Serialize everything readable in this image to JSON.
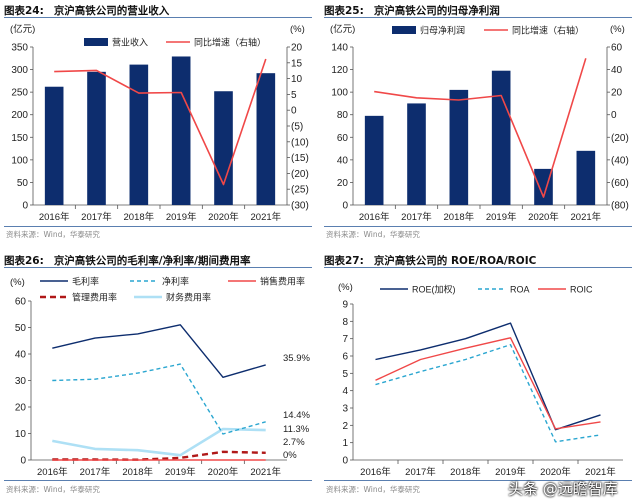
{
  "panels": [
    {
      "number": "图表24:",
      "title": "京沪高铁公司的营业收入",
      "source": "资料来源：Wind，华泰研究"
    },
    {
      "number": "图表25:",
      "title": "京沪高铁公司的归母净利润",
      "source": "资料来源：Wind，华泰研究"
    },
    {
      "number": "图表26:",
      "title": "京沪高铁公司的毛利率/净利率/期间费用率",
      "source": "资料来源：Wind，华泰研究"
    },
    {
      "number": "图表27:",
      "title": "京沪高铁公司的 ROE/ROA/ROIC",
      "source": "资料来源：Wind，华泰研究"
    }
  ],
  "watermark": "头条 @远瞻智库",
  "colors": {
    "navy": "#0d2d6e",
    "red": "#f04848",
    "teal": "#2aa6d0",
    "darkred": "#b01818",
    "lightblue": "#aee0f5",
    "rule": "#5a7fb0"
  },
  "chart_data": [
    {
      "type": "bar+line",
      "title": "京沪高铁公司的营业收入",
      "categories": [
        "2016年",
        "2017年",
        "2018年",
        "2019年",
        "2020年",
        "2021年"
      ],
      "ylabel": "(亿元)",
      "y2label": "(%)",
      "ylim": [
        0,
        350
      ],
      "y2lim": [
        -30,
        20
      ],
      "y_tick_labels": [
        "0",
        "50",
        "100",
        "150",
        "200",
        "250",
        "300",
        "350"
      ],
      "y2_tick_labels": [
        "(30)",
        "(25)",
        "(20)",
        "(15)",
        "(10)",
        "(5)",
        "0",
        "5",
        "10",
        "15",
        "20"
      ],
      "series": [
        {
          "name": "营业收入",
          "kind": "bar",
          "axis": "left",
          "color": "#0d2d6e",
          "values": [
            262,
            295,
            311,
            329,
            252,
            292
          ]
        },
        {
          "name": "同比增速（右轴）",
          "kind": "line",
          "axis": "right",
          "color": "#f04848",
          "values": [
            12.2,
            12.6,
            5.4,
            5.6,
            -23.5,
            16.2
          ]
        }
      ],
      "legend": "top"
    },
    {
      "type": "bar+line",
      "title": "京沪高铁公司的归母净利润",
      "categories": [
        "2016年",
        "2017年",
        "2018年",
        "2019年",
        "2020年",
        "2021年"
      ],
      "ylabel": "(亿元)",
      "y2label": "(%)",
      "ylim": [
        0,
        140
      ],
      "y2lim": [
        -80,
        60
      ],
      "y_tick_labels": [
        "0",
        "20",
        "40",
        "60",
        "80",
        "100",
        "120",
        "140"
      ],
      "y2_tick_labels": [
        "(80)",
        "(60)",
        "(40)",
        "(20)",
        "0",
        "20",
        "40",
        "60"
      ],
      "series": [
        {
          "name": "归母净利润",
          "kind": "bar",
          "axis": "left",
          "color": "#0d2d6e",
          "values": [
            79,
            90,
            102,
            119,
            32,
            48
          ]
        },
        {
          "name": "同比增速（右轴）",
          "kind": "line",
          "axis": "right",
          "color": "#f04848",
          "values": [
            20.5,
            15,
            13,
            17,
            -73,
            50
          ]
        }
      ],
      "legend": "top"
    },
    {
      "type": "line",
      "title": "京沪高铁公司的毛利率/净利率/期间费用率",
      "categories": [
        "2016年",
        "2017年",
        "2018年",
        "2019年",
        "2020年",
        "2021年"
      ],
      "ylabel": "(%)",
      "ylim": [
        0,
        60
      ],
      "y_tick_labels": [
        "0",
        "10",
        "20",
        "30",
        "40",
        "50",
        "60"
      ],
      "series": [
        {
          "name": "毛利率",
          "kind": "line",
          "style": "solid",
          "color": "#0d2d6e",
          "values": [
            42.2,
            46,
            47.6,
            51,
            31.2,
            35.9
          ],
          "end_label": "35.9%"
        },
        {
          "name": "净利率",
          "kind": "line",
          "style": "dash",
          "color": "#2aa6d0",
          "values": [
            30,
            30.5,
            32.8,
            36.2,
            9.8,
            14.4
          ],
          "end_label": "14.4%"
        },
        {
          "name": "销售费用率",
          "kind": "line",
          "style": "solid",
          "color": "#f04848",
          "values": [
            0,
            0,
            0,
            0,
            0,
            0
          ],
          "end_label": "0%"
        },
        {
          "name": "管理费用率",
          "kind": "line",
          "style": "thickdash",
          "color": "#b01818",
          "values": [
            0.2,
            0.2,
            0.1,
            0.8,
            3.1,
            2.7
          ],
          "end_label": "2.7%"
        },
        {
          "name": "财务费用率",
          "kind": "line",
          "style": "thick",
          "color": "#aee0f5",
          "values": [
            7.2,
            4.2,
            3.7,
            1.8,
            11.7,
            11.3
          ],
          "end_label": "11.3%"
        }
      ],
      "legend": "top"
    },
    {
      "type": "line",
      "title": "京沪高铁公司的 ROE/ROA/ROIC",
      "categories": [
        "2016年",
        "2017年",
        "2018年",
        "2019年",
        "2020年",
        "2021年"
      ],
      "ylabel": "(%)",
      "ylim": [
        0,
        9
      ],
      "y_tick_labels": [
        "0",
        "1",
        "2",
        "3",
        "4",
        "5",
        "6",
        "7",
        "8",
        "9"
      ],
      "series": [
        {
          "name": "ROE(加权)",
          "kind": "line",
          "style": "solid",
          "color": "#0d2d6e",
          "values": [
            5.8,
            6.35,
            7.0,
            7.9,
            1.75,
            2.6
          ]
        },
        {
          "name": "ROA",
          "kind": "line",
          "style": "dash",
          "color": "#2aa6d0",
          "values": [
            4.35,
            5.1,
            5.8,
            6.65,
            1.05,
            1.45
          ]
        },
        {
          "name": "ROIC",
          "kind": "line",
          "style": "solid",
          "color": "#f04848",
          "values": [
            4.6,
            5.8,
            6.45,
            7.05,
            1.8,
            2.2
          ]
        }
      ],
      "legend": "top"
    }
  ]
}
